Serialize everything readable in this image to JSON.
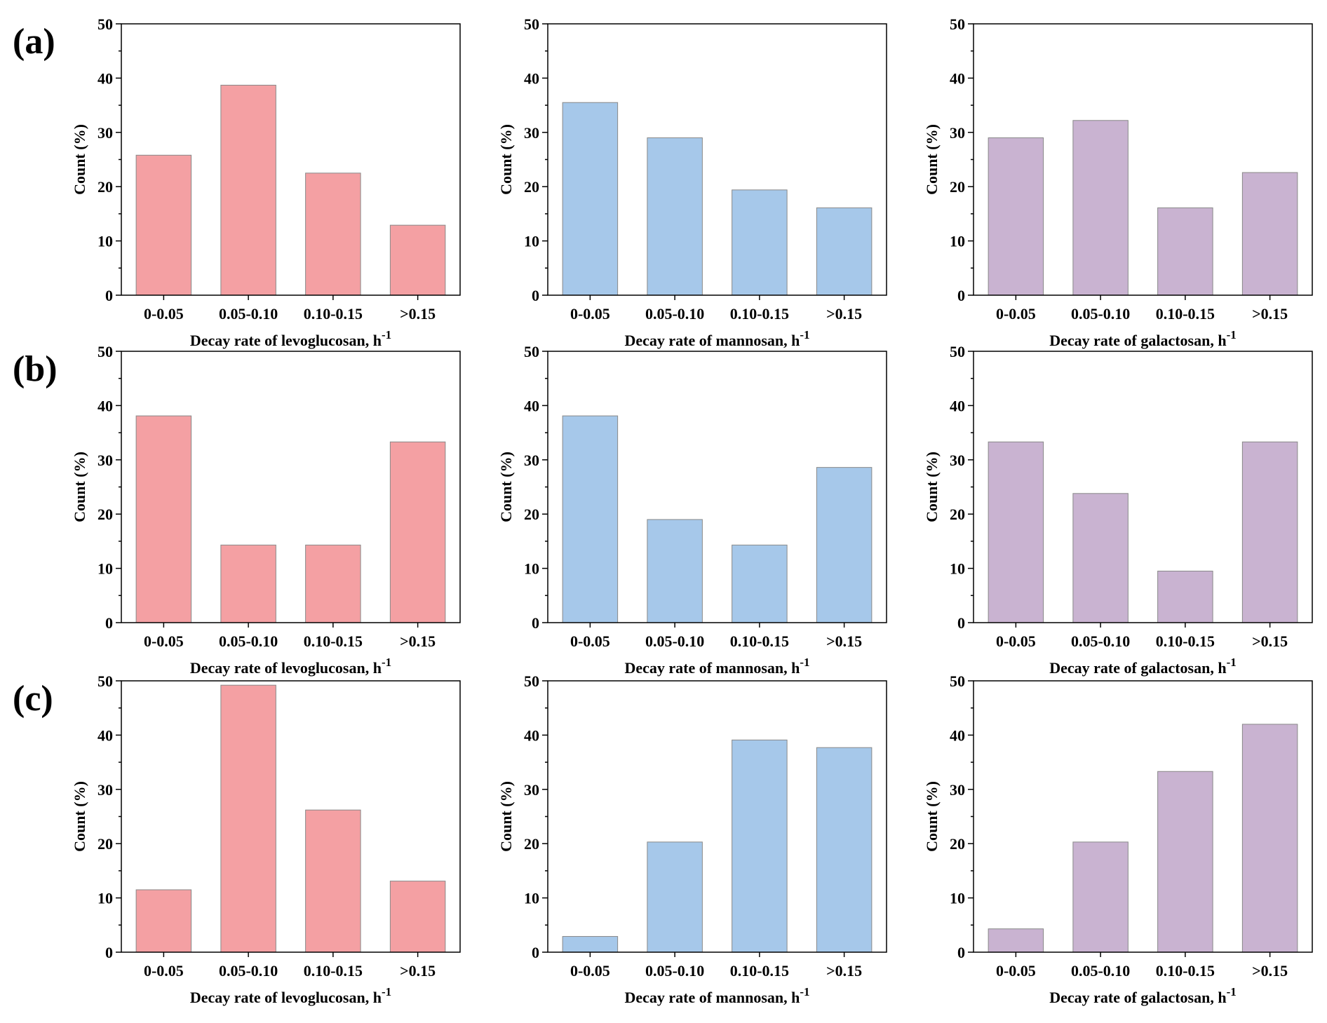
{
  "panel_labels": [
    "(a)",
    "(b)",
    "(c)"
  ],
  "chart_data": [
    {
      "type": "bar",
      "ylabel": "Count (%)",
      "xlabel": "Decay rate of levoglucosan, h",
      "xlabel_sup": "-1",
      "categories": [
        "0-0.05",
        "0.05-0.10",
        "0.10-0.15",
        ">0.15"
      ],
      "values": [
        25.8,
        38.7,
        22.5,
        12.9
      ],
      "color": "#f4a0a3",
      "ylim": [
        0,
        50
      ],
      "yticks": [
        0,
        10,
        20,
        30,
        40,
        50
      ]
    },
    {
      "type": "bar",
      "ylabel": "Count (%)",
      "xlabel": "Decay rate of mannosan, h",
      "xlabel_sup": "-1",
      "categories": [
        "0-0.05",
        "0.05-0.10",
        "0.10-0.15",
        ">0.15"
      ],
      "values": [
        35.5,
        29.0,
        19.4,
        16.1
      ],
      "color": "#a6c8ea",
      "ylim": [
        0,
        50
      ],
      "yticks": [
        0,
        10,
        20,
        30,
        40,
        50
      ]
    },
    {
      "type": "bar",
      "ylabel": "Count (%)",
      "xlabel": "Decay rate of galactosan, h",
      "xlabel_sup": "-1",
      "categories": [
        "0-0.05",
        "0.05-0.10",
        "0.10-0.15",
        ">0.15"
      ],
      "values": [
        29.0,
        32.2,
        16.1,
        22.6
      ],
      "color": "#c9b3d1",
      "ylim": [
        0,
        50
      ],
      "yticks": [
        0,
        10,
        20,
        30,
        40,
        50
      ]
    },
    {
      "type": "bar",
      "ylabel": "Count (%)",
      "xlabel": "Decay rate of levoglucosan, h",
      "xlabel_sup": "-1",
      "categories": [
        "0-0.05",
        "0.05-0.10",
        "0.10-0.15",
        ">0.15"
      ],
      "values": [
        38.1,
        14.3,
        14.3,
        33.3
      ],
      "color": "#f4a0a3",
      "ylim": [
        0,
        50
      ],
      "yticks": [
        0,
        10,
        20,
        30,
        40,
        50
      ]
    },
    {
      "type": "bar",
      "ylabel": "Count (%)",
      "xlabel": "Decay rate of mannosan, h",
      "xlabel_sup": "-1",
      "categories": [
        "0-0.05",
        "0.05-0.10",
        "0.10-0.15",
        ">0.15"
      ],
      "values": [
        38.1,
        19.0,
        14.3,
        28.6
      ],
      "color": "#a6c8ea",
      "ylim": [
        0,
        50
      ],
      "yticks": [
        0,
        10,
        20,
        30,
        40,
        50
      ]
    },
    {
      "type": "bar",
      "ylabel": "Count (%)",
      "xlabel": "Decay rate of galactosan, h",
      "xlabel_sup": "-1",
      "categories": [
        "0-0.05",
        "0.05-0.10",
        "0.10-0.15",
        ">0.15"
      ],
      "values": [
        33.3,
        23.8,
        9.5,
        33.3
      ],
      "color": "#c9b3d1",
      "ylim": [
        0,
        50
      ],
      "yticks": [
        0,
        10,
        20,
        30,
        40,
        50
      ]
    },
    {
      "type": "bar",
      "ylabel": "Count (%)",
      "xlabel": "Decay rate of levoglucosan, h",
      "xlabel_sup": "-1",
      "categories": [
        "0-0.05",
        "0.05-0.10",
        "0.10-0.15",
        ">0.15"
      ],
      "values": [
        11.5,
        49.2,
        26.2,
        13.1
      ],
      "color": "#f4a0a3",
      "ylim": [
        0,
        50
      ],
      "yticks": [
        0,
        10,
        20,
        30,
        40,
        50
      ]
    },
    {
      "type": "bar",
      "ylabel": "Count (%)",
      "xlabel": "Decay rate of mannosan, h",
      "xlabel_sup": "-1",
      "categories": [
        "0-0.05",
        "0.05-0.10",
        "0.10-0.15",
        ">0.15"
      ],
      "values": [
        2.9,
        20.3,
        39.1,
        37.7
      ],
      "color": "#a6c8ea",
      "ylim": [
        0,
        50
      ],
      "yticks": [
        0,
        10,
        20,
        30,
        40,
        50
      ]
    },
    {
      "type": "bar",
      "ylabel": "Count (%)",
      "xlabel": "Decay rate of galactosan, h",
      "xlabel_sup": "-1",
      "categories": [
        "0-0.05",
        "0.05-0.10",
        "0.10-0.15",
        ">0.15"
      ],
      "values": [
        4.3,
        20.3,
        33.3,
        42.0
      ],
      "color": "#c9b3d1",
      "ylim": [
        0,
        50
      ],
      "yticks": [
        0,
        10,
        20,
        30,
        40,
        50
      ]
    }
  ]
}
